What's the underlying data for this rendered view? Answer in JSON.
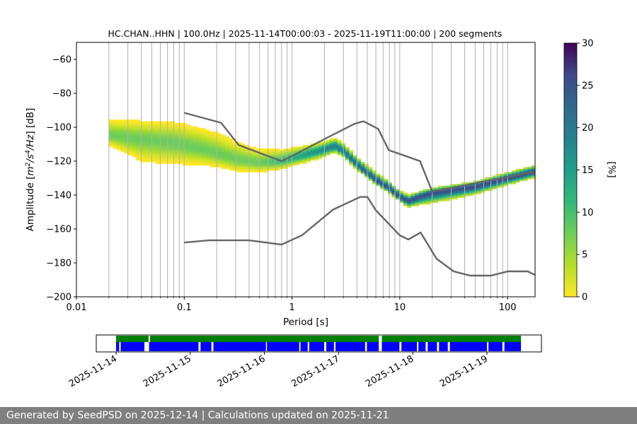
{
  "chart_data": [
    {
      "type": "heatmap",
      "title": "HC.CHAN..HHN | 100.0Hz | 2025-11-14T00:00:03 - 2025-11-19T11:00:00 | 200 segments",
      "xlabel": "Period [s]",
      "ylabel_parts": [
        "Amplitude [",
        "m",
        "2",
        "/s",
        "4",
        "/Hz",
        "] [dB]"
      ],
      "x_scale": "log",
      "xlim": [
        0.01,
        180
      ],
      "ylim": [
        -200,
        -50
      ],
      "x_ticks": [
        {
          "v": 0.01,
          "label": "0.01"
        },
        {
          "v": 0.1,
          "label": "0.1"
        },
        {
          "v": 1,
          "label": "1"
        },
        {
          "v": 10,
          "label": "10"
        },
        {
          "v": 100,
          "label": "100"
        }
      ],
      "y_ticks": [
        -60,
        -80,
        -100,
        -120,
        -140,
        -160,
        -180,
        -200
      ],
      "grid": "vertical",
      "colorbar": {
        "label": "[%]",
        "range": [
          0,
          30
        ],
        "ticks": [
          0,
          5,
          10,
          15,
          20,
          25,
          30
        ],
        "colormap": "viridis_r"
      },
      "high_noise_model": [
        [
          0.1,
          -91.5
        ],
        [
          0.22,
          -97.4
        ],
        [
          0.32,
          -110.5
        ],
        [
          0.8,
          -120
        ],
        [
          1,
          -117
        ],
        [
          2,
          -107
        ],
        [
          3.8,
          -98
        ],
        [
          4.6,
          -96.5
        ],
        [
          6.3,
          -101
        ],
        [
          7.9,
          -113.5
        ],
        [
          15.4,
          -120
        ],
        [
          20,
          -138
        ],
        [
          354,
          -126
        ]
      ],
      "low_noise_model": [
        [
          0.1,
          -168
        ],
        [
          0.17,
          -166.7
        ],
        [
          0.4,
          -166.7
        ],
        [
          0.8,
          -169.2
        ],
        [
          1.24,
          -163.7
        ],
        [
          2.4,
          -148.6
        ],
        [
          4.3,
          -141.1
        ],
        [
          5,
          -141.1
        ],
        [
          6,
          -149
        ],
        [
          10,
          -163.8
        ],
        [
          12,
          -166.2
        ],
        [
          15.6,
          -162.1
        ],
        [
          21.9,
          -177.5
        ],
        [
          31.6,
          -185
        ],
        [
          45,
          -187.5
        ],
        [
          70,
          -187.5
        ],
        [
          101,
          -185
        ],
        [
          154,
          -185
        ],
        [
          328,
          -187.5
        ]
      ],
      "density_mode": [
        [
          0.02,
          -105
        ],
        [
          0.03,
          -106
        ],
        [
          0.05,
          -107.5
        ],
        [
          0.08,
          -109
        ],
        [
          0.15,
          -113
        ],
        [
          0.3,
          -119
        ],
        [
          0.5,
          -121
        ],
        [
          0.8,
          -120
        ],
        [
          1.2,
          -117
        ],
        [
          2,
          -113
        ],
        [
          2.5,
          -111
        ],
        [
          3,
          -114
        ],
        [
          4,
          -122
        ],
        [
          5,
          -127
        ],
        [
          6,
          -131
        ],
        [
          8,
          -136
        ],
        [
          10,
          -141
        ],
        [
          12,
          -143.5
        ],
        [
          15,
          -141
        ],
        [
          20,
          -138.5
        ],
        [
          30,
          -137
        ],
        [
          50,
          -135
        ],
        [
          100,
          -130
        ],
        [
          180,
          -126
        ]
      ],
      "density_upper_spread": [
        [
          0.02,
          5
        ],
        [
          0.04,
          14
        ],
        [
          0.06,
          14
        ],
        [
          0.1,
          12
        ],
        [
          0.2,
          8
        ],
        [
          0.5,
          5
        ],
        [
          1,
          4
        ],
        [
          2,
          4
        ],
        [
          3,
          3
        ],
        [
          5,
          2
        ],
        [
          10,
          2
        ],
        [
          20,
          6
        ],
        [
          50,
          4
        ],
        [
          180,
          3
        ]
      ],
      "density_lower_spread": [
        [
          0.02,
          10
        ],
        [
          0.04,
          11
        ],
        [
          0.1,
          13
        ],
        [
          0.2,
          13
        ],
        [
          0.3,
          11
        ],
        [
          0.5,
          8
        ],
        [
          1,
          6
        ],
        [
          2,
          4
        ],
        [
          3,
          4
        ],
        [
          5,
          4
        ],
        [
          10,
          3
        ],
        [
          20,
          2
        ],
        [
          180,
          3
        ]
      ]
    },
    {
      "type": "timeline",
      "xlim": [
        "2025-11-14T00:00:00",
        "2025-11-20T00:00:00"
      ],
      "x_ticks": [
        "2025-11-14",
        "2025-11-15",
        "2025-11-16",
        "2025-11-17",
        "2025-11-18",
        "2025-11-19"
      ],
      "data_available": [
        [
          "2025-11-14T00:00:03",
          "2025-11-14T10:30"
        ],
        [
          "2025-11-14T11:00",
          "2025-11-17T13:00"
        ],
        [
          "2025-11-17T14:00",
          "2025-11-19T11:00"
        ]
      ],
      "segments_used": [
        [
          "2025-11-14T00:00:03",
          "2025-11-14T01:00"
        ],
        [
          "2025-11-14T01:30",
          "2025-11-14T09:10"
        ],
        [
          "2025-11-14T10:40",
          "2025-11-15T02:40"
        ],
        [
          "2025-11-15T03:20",
          "2025-11-15T06:50"
        ],
        [
          "2025-11-15T07:30",
          "2025-11-16T00:30"
        ],
        [
          "2025-11-16T00:50",
          "2025-11-16T11:15"
        ],
        [
          "2025-11-16T11:40",
          "2025-11-16T14:00"
        ],
        [
          "2025-11-16T14:30",
          "2025-11-16T19:20"
        ],
        [
          "2025-11-16T20:00",
          "2025-11-16T22:30"
        ],
        [
          "2025-11-16T23:00",
          "2025-11-17T08:35"
        ],
        [
          "2025-11-17T09:10",
          "2025-11-17T13:00"
        ],
        [
          "2025-11-17T14:00",
          "2025-11-17T19:40"
        ],
        [
          "2025-11-17T20:20",
          "2025-11-18T01:20"
        ],
        [
          "2025-11-18T01:50",
          "2025-11-18T04:10"
        ],
        [
          "2025-11-18T04:50",
          "2025-11-18T07:50"
        ],
        [
          "2025-11-18T08:30",
          "2025-11-18T11:20"
        ],
        [
          "2025-11-18T12:00",
          "2025-11-19T00:00"
        ],
        [
          "2025-11-19T00:30",
          "2025-11-19T05:00"
        ],
        [
          "2025-11-19T05:40",
          "2025-11-19T11:00"
        ]
      ]
    }
  ],
  "footer": {
    "text": "Generated by SeedPSD on 2025-12-14 | Calculations updated on 2025-11-21"
  },
  "colors": {
    "model_lines": "#666666",
    "grid": "#b0b0b0",
    "data_available": "#008000",
    "segments_used": "#0000ff",
    "footer_bg": "#7f7f7f"
  }
}
